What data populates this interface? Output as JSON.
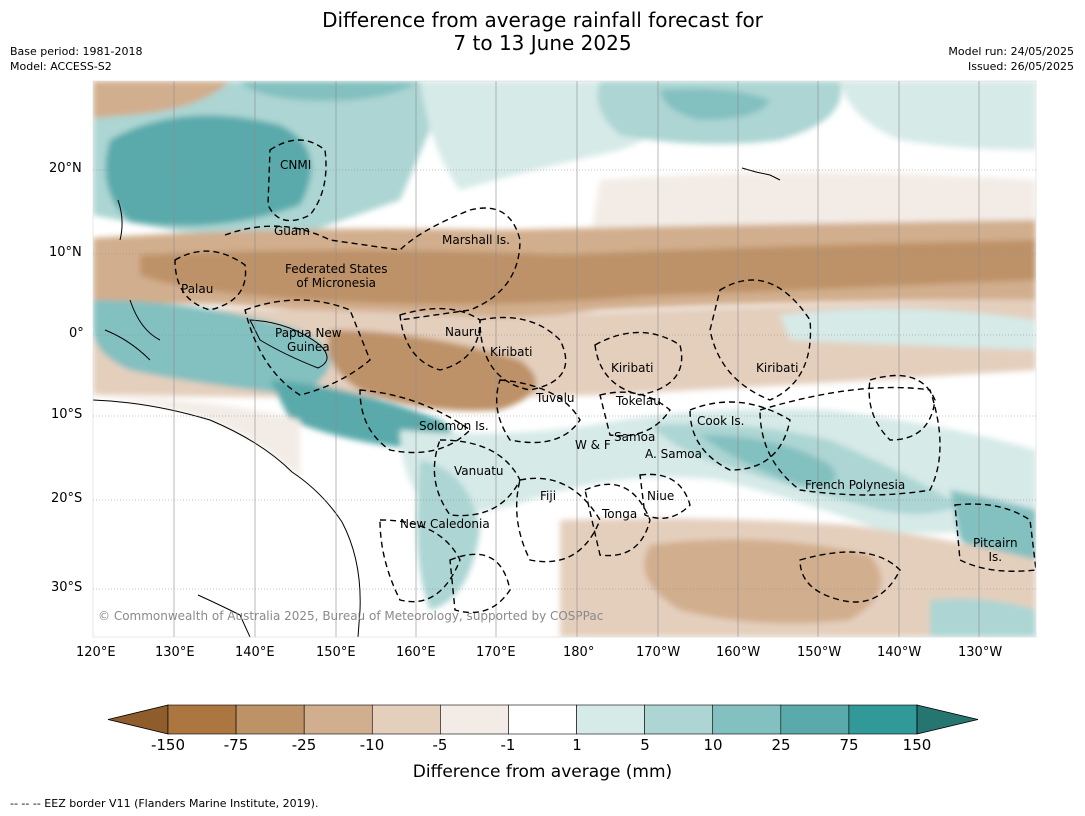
{
  "title_line1": "Difference from average rainfall forecast for",
  "title_line2": "7 to 13 June 2025",
  "meta_left": [
    "Base period: 1981-2018",
    "Model: ACCESS-S2"
  ],
  "meta_right": [
    "Model run: 24/05/2025",
    "Issued: 26/05/2025"
  ],
  "map": {
    "lon_ticks": [
      "120°E",
      "130°E",
      "140°E",
      "150°E",
      "160°E",
      "170°E",
      "180°",
      "170°W",
      "160°W",
      "150°W",
      "140°W",
      "130°W"
    ],
    "lat_ticks": [
      "20°N",
      "10°N",
      "0°",
      "10°S",
      "20°S",
      "30°S"
    ],
    "regions": [
      {
        "name": "CNMI",
        "lines": [
          "CNMI"
        ]
      },
      {
        "name": "Guam",
        "lines": [
          "Guam"
        ]
      },
      {
        "name": "Marshall Is.",
        "lines": [
          "Marshall Is."
        ]
      },
      {
        "name": "Federated States of Micronesia",
        "lines": [
          "Federated States",
          "of Micronesia"
        ]
      },
      {
        "name": "Palau",
        "lines": [
          "Palau"
        ]
      },
      {
        "name": "Papua New Guinea",
        "lines": [
          "Papua New",
          "Guinea"
        ]
      },
      {
        "name": "Nauru",
        "lines": [
          "Nauru"
        ]
      },
      {
        "name": "Kiribati (Gilbert)",
        "lines": [
          "Kiribati"
        ]
      },
      {
        "name": "Kiribati (Phoenix)",
        "lines": [
          "Kiribati"
        ]
      },
      {
        "name": "Kiribati (Line)",
        "lines": [
          "Kiribati"
        ]
      },
      {
        "name": "Tuvalu",
        "lines": [
          "Tuvalu"
        ]
      },
      {
        "name": "Tokelau",
        "lines": [
          "Tokelau"
        ]
      },
      {
        "name": "Solomon Is.",
        "lines": [
          "Solomon Is."
        ]
      },
      {
        "name": "Cook Is.",
        "lines": [
          "Cook Is."
        ]
      },
      {
        "name": "Samoa",
        "lines": [
          "Samoa"
        ]
      },
      {
        "name": "W & F",
        "lines": [
          "W & F"
        ]
      },
      {
        "name": "A. Samoa",
        "lines": [
          "A. Samoa"
        ]
      },
      {
        "name": "Vanuatu",
        "lines": [
          "Vanuatu"
        ]
      },
      {
        "name": "Fiji",
        "lines": [
          "Fiji"
        ]
      },
      {
        "name": "Niue",
        "lines": [
          "Niue"
        ]
      },
      {
        "name": "Tonga",
        "lines": [
          "Tonga"
        ]
      },
      {
        "name": "French Polynesia",
        "lines": [
          "French Polynesia"
        ]
      },
      {
        "name": "New Caledonia",
        "lines": [
          "New Caledonia"
        ]
      },
      {
        "name": "Pitcairn Is.",
        "lines": [
          "Pitcairn",
          "Is."
        ]
      }
    ],
    "copyright": "© Commonwealth of Australia 2025, Bureau of Meteorology, supported by COSPPac"
  },
  "colorbar": {
    "title": "Difference from average (mm)",
    "labels": [
      "-150",
      "-75",
      "-25",
      "-10",
      "-5",
      "-1",
      "1",
      "5",
      "10",
      "25",
      "75",
      "150"
    ],
    "colors": [
      "#8f5c2b",
      "#ab7640",
      "#be9267",
      "#d1ae8d",
      "#e4cfbd",
      "#f3ece6",
      "#ffffff",
      "#d6eae8",
      "#acd5d3",
      "#83c0c0",
      "#5aaaab",
      "#319a98",
      "#267571"
    ]
  },
  "footer": "--  --  -- EEZ border V11 (Flanders Marine Institute, 2019)."
}
